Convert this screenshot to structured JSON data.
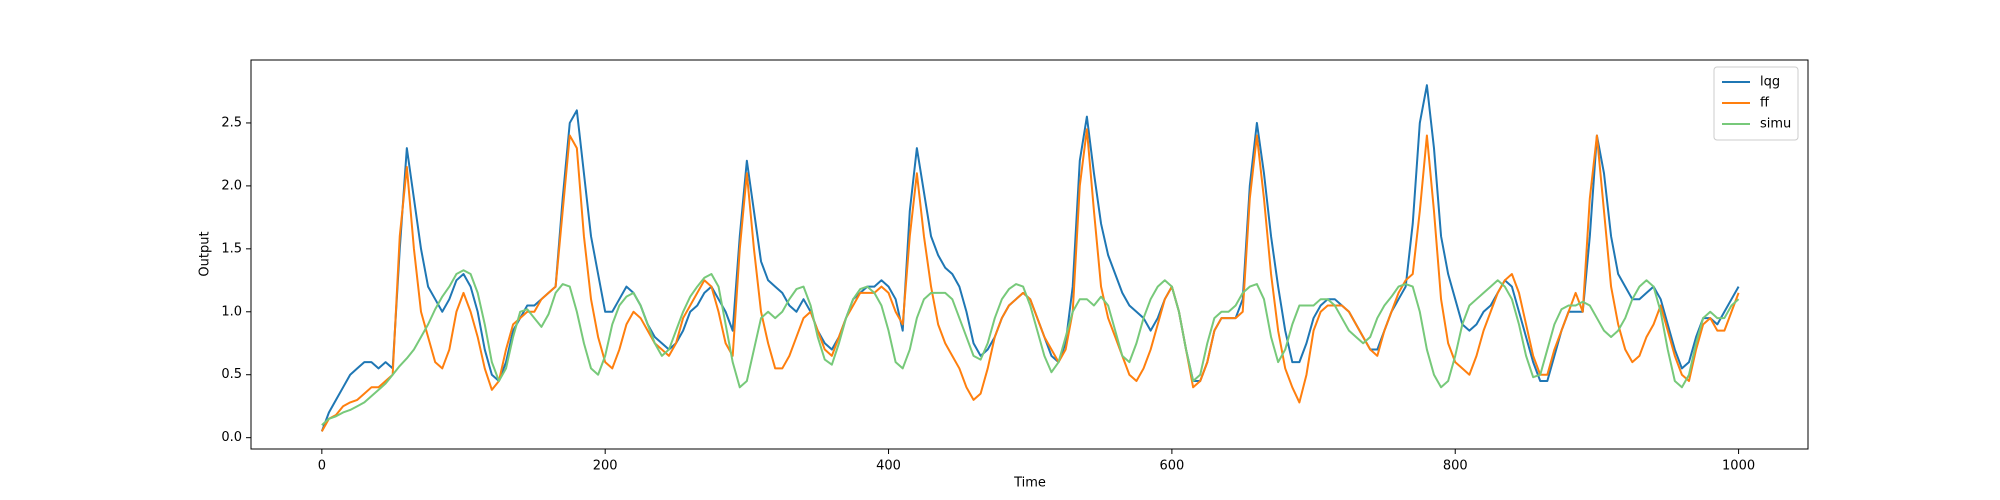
{
  "chart_data": {
    "type": "line",
    "x_label": "Time",
    "y_label": "Output",
    "x": [
      0,
      5,
      10,
      15,
      20,
      25,
      30,
      35,
      40,
      45,
      50,
      55,
      60,
      65,
      70,
      75,
      80,
      85,
      90,
      95,
      100,
      105,
      110,
      115,
      120,
      125,
      130,
      135,
      140,
      145,
      150,
      155,
      160,
      165,
      170,
      175,
      180,
      185,
      190,
      195,
      200,
      205,
      210,
      215,
      220,
      225,
      230,
      235,
      240,
      245,
      250,
      255,
      260,
      265,
      270,
      275,
      280,
      285,
      290,
      295,
      300,
      305,
      310,
      315,
      320,
      325,
      330,
      335,
      340,
      345,
      350,
      355,
      360,
      365,
      370,
      375,
      380,
      385,
      390,
      395,
      400,
      405,
      410,
      415,
      420,
      425,
      430,
      435,
      440,
      445,
      450,
      455,
      460,
      465,
      470,
      475,
      480,
      485,
      490,
      495,
      500,
      505,
      510,
      515,
      520,
      525,
      530,
      535,
      540,
      545,
      550,
      555,
      560,
      565,
      570,
      575,
      580,
      585,
      590,
      595,
      600,
      605,
      610,
      615,
      620,
      625,
      630,
      635,
      640,
      645,
      650,
      655,
      660,
      665,
      670,
      675,
      680,
      685,
      690,
      695,
      700,
      705,
      710,
      715,
      720,
      725,
      730,
      735,
      740,
      745,
      750,
      755,
      760,
      765,
      770,
      775,
      780,
      785,
      790,
      795,
      800,
      805,
      810,
      815,
      820,
      825,
      830,
      835,
      840,
      845,
      850,
      855,
      860,
      865,
      870,
      875,
      880,
      885,
      890,
      895,
      900,
      905,
      910,
      915,
      920,
      925,
      930,
      935,
      940,
      945,
      950,
      955,
      960,
      965,
      970,
      975,
      980,
      985,
      990,
      995,
      1000
    ],
    "series": [
      {
        "name": "lqg",
        "color": "#1f77b4",
        "values": [
          0.05,
          0.2,
          0.3,
          0.4,
          0.5,
          0.55,
          0.6,
          0.6,
          0.55,
          0.6,
          0.55,
          1.5,
          2.3,
          1.9,
          1.5,
          1.2,
          1.1,
          1.0,
          1.1,
          1.25,
          1.3,
          1.2,
          1.0,
          0.7,
          0.5,
          0.45,
          0.6,
          0.85,
          0.95,
          1.05,
          1.05,
          1.1,
          1.15,
          1.2,
          1.9,
          2.5,
          2.6,
          2.1,
          1.6,
          1.3,
          1.0,
          1.0,
          1.1,
          1.2,
          1.15,
          1.05,
          0.9,
          0.8,
          0.75,
          0.7,
          0.75,
          0.85,
          1.0,
          1.05,
          1.15,
          1.2,
          1.1,
          1.0,
          0.85,
          1.6,
          2.2,
          1.8,
          1.4,
          1.25,
          1.2,
          1.15,
          1.05,
          1.0,
          1.1,
          1.0,
          0.85,
          0.75,
          0.7,
          0.8,
          0.95,
          1.1,
          1.15,
          1.2,
          1.2,
          1.25,
          1.2,
          1.1,
          0.85,
          1.8,
          2.3,
          1.95,
          1.6,
          1.45,
          1.35,
          1.3,
          1.2,
          1.0,
          0.75,
          0.65,
          0.7,
          0.8,
          0.95,
          1.05,
          1.1,
          1.15,
          1.1,
          0.95,
          0.8,
          0.65,
          0.6,
          0.75,
          1.2,
          2.2,
          2.55,
          2.1,
          1.7,
          1.45,
          1.3,
          1.15,
          1.05,
          1.0,
          0.95,
          0.85,
          0.95,
          1.1,
          1.2,
          1.0,
          0.7,
          0.45,
          0.45,
          0.6,
          0.85,
          0.95,
          0.95,
          0.95,
          1.1,
          2.0,
          2.5,
          2.1,
          1.6,
          1.2,
          0.85,
          0.6,
          0.6,
          0.75,
          0.95,
          1.05,
          1.1,
          1.1,
          1.05,
          1.0,
          0.9,
          0.8,
          0.7,
          0.7,
          0.85,
          1.0,
          1.1,
          1.2,
          1.7,
          2.5,
          2.8,
          2.3,
          1.6,
          1.3,
          1.1,
          0.9,
          0.85,
          0.9,
          1.0,
          1.05,
          1.15,
          1.25,
          1.2,
          1.0,
          0.8,
          0.6,
          0.45,
          0.45,
          0.65,
          0.85,
          1.0,
          1.0,
          1.0,
          1.6,
          2.4,
          2.1,
          1.6,
          1.3,
          1.2,
          1.1,
          1.1,
          1.15,
          1.2,
          1.1,
          0.9,
          0.7,
          0.55,
          0.6,
          0.8,
          0.95,
          0.95,
          0.9,
          1.0,
          1.1,
          1.2
        ]
      },
      {
        "name": "ff",
        "color": "#ff7f0e",
        "values": [
          0.05,
          0.15,
          0.18,
          0.25,
          0.28,
          0.3,
          0.35,
          0.4,
          0.4,
          0.45,
          0.5,
          1.6,
          2.15,
          1.5,
          1.0,
          0.8,
          0.6,
          0.55,
          0.7,
          1.0,
          1.15,
          1.0,
          0.8,
          0.55,
          0.38,
          0.45,
          0.7,
          0.9,
          0.95,
          1.0,
          1.0,
          1.1,
          1.15,
          1.2,
          1.8,
          2.4,
          2.3,
          1.6,
          1.1,
          0.8,
          0.6,
          0.55,
          0.7,
          0.9,
          1.0,
          0.95,
          0.85,
          0.75,
          0.7,
          0.65,
          0.75,
          0.95,
          1.05,
          1.15,
          1.25,
          1.2,
          1.0,
          0.75,
          0.65,
          1.5,
          2.1,
          1.5,
          1.0,
          0.75,
          0.55,
          0.55,
          0.65,
          0.8,
          0.95,
          1.0,
          0.85,
          0.7,
          0.65,
          0.8,
          0.95,
          1.05,
          1.15,
          1.15,
          1.15,
          1.2,
          1.15,
          1.0,
          0.9,
          1.6,
          2.1,
          1.6,
          1.2,
          0.9,
          0.75,
          0.65,
          0.55,
          0.4,
          0.3,
          0.35,
          0.55,
          0.8,
          0.95,
          1.05,
          1.1,
          1.15,
          1.1,
          0.95,
          0.8,
          0.7,
          0.6,
          0.7,
          1.0,
          2.0,
          2.45,
          1.8,
          1.2,
          0.95,
          0.8,
          0.65,
          0.5,
          0.45,
          0.55,
          0.7,
          0.9,
          1.1,
          1.2,
          1.0,
          0.7,
          0.4,
          0.45,
          0.6,
          0.85,
          0.95,
          0.95,
          0.95,
          1.0,
          1.9,
          2.4,
          1.9,
          1.3,
          0.85,
          0.55,
          0.4,
          0.28,
          0.5,
          0.85,
          1.0,
          1.05,
          1.05,
          1.05,
          1.0,
          0.9,
          0.8,
          0.7,
          0.65,
          0.85,
          1.0,
          1.15,
          1.25,
          1.3,
          1.8,
          2.4,
          1.8,
          1.1,
          0.75,
          0.6,
          0.55,
          0.5,
          0.65,
          0.85,
          1.0,
          1.15,
          1.25,
          1.3,
          1.15,
          0.9,
          0.65,
          0.5,
          0.5,
          0.7,
          0.85,
          1.0,
          1.15,
          1.0,
          1.9,
          2.4,
          1.8,
          1.2,
          0.9,
          0.7,
          0.6,
          0.65,
          0.8,
          0.9,
          1.05,
          0.85,
          0.65,
          0.5,
          0.45,
          0.7,
          0.9,
          0.95,
          0.85,
          0.85,
          1.0,
          1.15
        ]
      },
      {
        "name": "simu",
        "color": "#77c97a",
        "values": [
          0.1,
          0.15,
          0.17,
          0.2,
          0.22,
          0.25,
          0.28,
          0.33,
          0.38,
          0.43,
          0.5,
          0.57,
          0.63,
          0.7,
          0.8,
          0.9,
          1.02,
          1.12,
          1.2,
          1.3,
          1.33,
          1.3,
          1.15,
          0.9,
          0.6,
          0.45,
          0.55,
          0.8,
          1.0,
          1.02,
          0.95,
          0.88,
          0.98,
          1.15,
          1.22,
          1.2,
          1.0,
          0.75,
          0.55,
          0.5,
          0.65,
          0.9,
          1.05,
          1.12,
          1.15,
          1.05,
          0.9,
          0.75,
          0.65,
          0.7,
          0.85,
          1.0,
          1.12,
          1.2,
          1.27,
          1.3,
          1.2,
          0.9,
          0.6,
          0.4,
          0.45,
          0.7,
          0.95,
          1.0,
          0.95,
          1.0,
          1.1,
          1.18,
          1.2,
          1.05,
          0.8,
          0.62,
          0.58,
          0.75,
          0.95,
          1.1,
          1.18,
          1.2,
          1.15,
          1.05,
          0.85,
          0.6,
          0.55,
          0.7,
          0.95,
          1.1,
          1.15,
          1.15,
          1.15,
          1.1,
          0.95,
          0.8,
          0.65,
          0.62,
          0.75,
          0.95,
          1.1,
          1.18,
          1.22,
          1.2,
          1.05,
          0.85,
          0.65,
          0.52,
          0.6,
          0.8,
          1.0,
          1.1,
          1.1,
          1.05,
          1.12,
          1.05,
          0.85,
          0.65,
          0.6,
          0.75,
          0.95,
          1.1,
          1.2,
          1.25,
          1.2,
          1.0,
          0.7,
          0.45,
          0.5,
          0.75,
          0.95,
          1.0,
          1.0,
          1.05,
          1.15,
          1.2,
          1.22,
          1.1,
          0.8,
          0.6,
          0.7,
          0.9,
          1.05,
          1.05,
          1.05,
          1.1,
          1.1,
          1.05,
          0.95,
          0.85,
          0.8,
          0.75,
          0.8,
          0.95,
          1.05,
          1.12,
          1.2,
          1.22,
          1.2,
          1.0,
          0.7,
          0.5,
          0.4,
          0.45,
          0.65,
          0.9,
          1.05,
          1.1,
          1.15,
          1.2,
          1.25,
          1.2,
          1.1,
          0.9,
          0.65,
          0.48,
          0.5,
          0.7,
          0.9,
          1.02,
          1.05,
          1.05,
          1.08,
          1.05,
          0.95,
          0.85,
          0.8,
          0.85,
          0.95,
          1.1,
          1.2,
          1.25,
          1.2,
          1.0,
          0.7,
          0.45,
          0.4,
          0.5,
          0.75,
          0.95,
          1.0,
          0.95,
          0.95,
          1.05,
          1.1
        ]
      }
    ],
    "xlim": [
      -50,
      1049
    ],
    "ylim": [
      -0.09,
      3.0
    ],
    "xticks": [
      0,
      200,
      400,
      600,
      800,
      1000
    ],
    "yticks": [
      {
        "value": 0,
        "label": "0.0"
      },
      {
        "value": 0.5,
        "label": "0.5"
      },
      {
        "value": 1,
        "label": "1.0"
      },
      {
        "value": 1.5,
        "label": "1.5"
      },
      {
        "value": 2,
        "label": "2.0"
      },
      {
        "value": 2.5,
        "label": "2.5"
      }
    ],
    "legend": "upper right"
  }
}
